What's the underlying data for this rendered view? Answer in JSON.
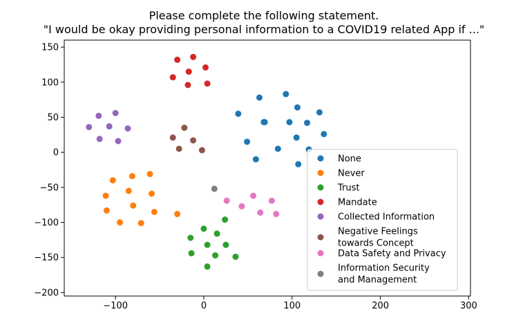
{
  "chart_data": {
    "type": "scatter",
    "title_lines": [
      "Please complete the following statement.",
      "\"I would be okay providing personal information to a COVID19 related App if ...\""
    ],
    "xlabel": "",
    "ylabel": "",
    "xlim": [
      -158,
      302
    ],
    "ylim": [
      -205,
      160
    ],
    "xticks": [
      -100,
      0,
      100,
      200,
      300
    ],
    "yticks": [
      -200,
      -150,
      -100,
      -50,
      0,
      50,
      100,
      150
    ],
    "xtick_labels": [
      "−100",
      "0",
      "100",
      "200",
      "300"
    ],
    "ytick_labels": [
      "−200",
      "−150",
      "−100",
      "−50",
      "0",
      "50",
      "100",
      "150"
    ],
    "grid": false,
    "legend_position": "lower-right",
    "series": [
      {
        "name": "None",
        "color": "#1f77b4",
        "points": [
          [
            39,
            55
          ],
          [
            63,
            78
          ],
          [
            93,
            83
          ],
          [
            106,
            64
          ],
          [
            131,
            57
          ],
          [
            68,
            43
          ],
          [
            69,
            43
          ],
          [
            97,
            43
          ],
          [
            117,
            42
          ],
          [
            136,
            26
          ],
          [
            49,
            15
          ],
          [
            105,
            21
          ],
          [
            84,
            5
          ],
          [
            119,
            4
          ],
          [
            59,
            -10
          ],
          [
            107,
            -17
          ]
        ]
      },
      {
        "name": "Never",
        "color": "#ff7f0e",
        "points": [
          [
            -61,
            -31
          ],
          [
            -81,
            -34
          ],
          [
            -103,
            -40
          ],
          [
            -59,
            -59
          ],
          [
            -85,
            -55
          ],
          [
            -111,
            -62
          ],
          [
            -80,
            -76
          ],
          [
            -110,
            -83
          ],
          [
            -56,
            -85
          ],
          [
            -30,
            -88
          ],
          [
            -95,
            -100
          ],
          [
            -71,
            -101
          ]
        ]
      },
      {
        "name": "Trust",
        "color": "#2ca02c",
        "points": [
          [
            0,
            -109
          ],
          [
            24,
            -96
          ],
          [
            15,
            -116
          ],
          [
            -15,
            -122
          ],
          [
            4,
            -132
          ],
          [
            25,
            -132
          ],
          [
            -14,
            -144
          ],
          [
            13,
            -147
          ],
          [
            36,
            -149
          ],
          [
            4,
            -163
          ]
        ]
      },
      {
        "name": "Mandate",
        "color": "#d62728",
        "points": [
          [
            -12,
            136
          ],
          [
            -30,
            132
          ],
          [
            2,
            121
          ],
          [
            -17,
            115
          ],
          [
            -35,
            107
          ],
          [
            -18,
            96
          ],
          [
            4,
            98
          ]
        ]
      },
      {
        "name": "Collected Information",
        "color": "#9467bd",
        "points": [
          [
            -100,
            56
          ],
          [
            -119,
            52
          ],
          [
            -130,
            36
          ],
          [
            -107,
            37
          ],
          [
            -86,
            34
          ],
          [
            -118,
            19
          ],
          [
            -97,
            16
          ]
        ]
      },
      {
        "name": "Negative Feelings\ntowards Concept",
        "color": "#8c564b",
        "points": [
          [
            -22,
            35
          ],
          [
            -35,
            21
          ],
          [
            -12,
            17
          ],
          [
            -28,
            5
          ],
          [
            -2,
            3
          ]
        ]
      },
      {
        "name": "Data Safety and Privacy",
        "color": "#e377c2",
        "points": [
          [
            26,
            -69
          ],
          [
            43,
            -77
          ],
          [
            56,
            -62
          ],
          [
            77,
            -69
          ],
          [
            64,
            -86
          ],
          [
            82,
            -88
          ]
        ]
      },
      {
        "name": "Information Security\nand Management",
        "color": "#7f7f7f",
        "points": [
          [
            12,
            -52
          ]
        ]
      }
    ]
  }
}
